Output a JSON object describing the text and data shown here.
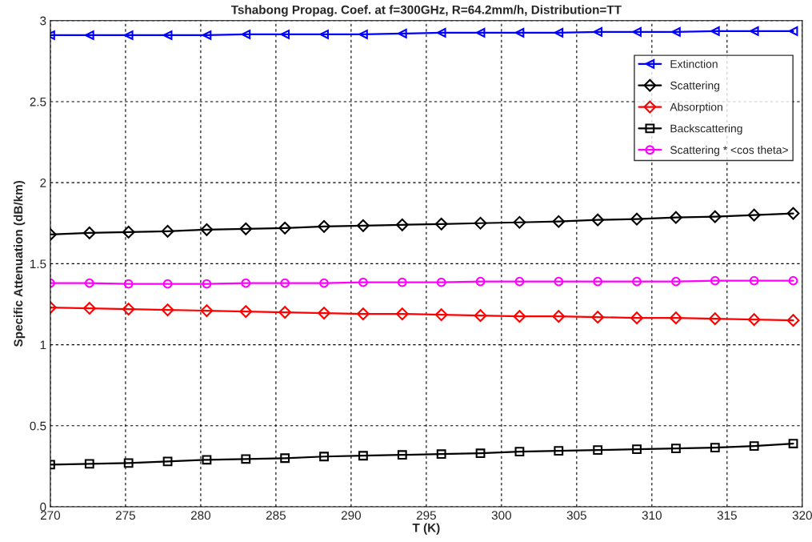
{
  "chart_data": {
    "type": "line",
    "title": "Tshabong Propag. Coef. at f=300GHz, R=64.2mm/h, Distribution=TT",
    "xlabel": "T (K)",
    "ylabel": "Specific Attenuation (dB/km)",
    "x": [
      270,
      272.6,
      275.2,
      277.8,
      280.4,
      283,
      285.6,
      288.2,
      290.8,
      293.4,
      296,
      298.6,
      301.2,
      303.8,
      306.4,
      309,
      311.6,
      314.2,
      316.8,
      319.4
    ],
    "series": [
      {
        "name": "Extinction",
        "color": "#0000ff",
        "marker": "triangle",
        "values": [
          2.91,
          2.91,
          2.91,
          2.91,
          2.91,
          2.915,
          2.915,
          2.915,
          2.915,
          2.92,
          2.925,
          2.925,
          2.925,
          2.925,
          2.93,
          2.93,
          2.93,
          2.935,
          2.935,
          2.935
        ]
      },
      {
        "name": "Scattering",
        "color": "#000000",
        "marker": "diamond",
        "values": [
          1.68,
          1.69,
          1.695,
          1.7,
          1.71,
          1.715,
          1.72,
          1.73,
          1.735,
          1.74,
          1.745,
          1.75,
          1.755,
          1.76,
          1.77,
          1.775,
          1.785,
          1.79,
          1.8,
          1.81
        ]
      },
      {
        "name": "Absorption",
        "color": "#ff0000",
        "marker": "diamond",
        "values": [
          1.23,
          1.225,
          1.22,
          1.215,
          1.21,
          1.205,
          1.2,
          1.195,
          1.19,
          1.19,
          1.185,
          1.18,
          1.175,
          1.175,
          1.17,
          1.165,
          1.165,
          1.16,
          1.155,
          1.15
        ]
      },
      {
        "name": "Backscattering",
        "color": "#000000",
        "marker": "square",
        "values": [
          0.26,
          0.265,
          0.27,
          0.28,
          0.29,
          0.295,
          0.3,
          0.31,
          0.315,
          0.32,
          0.325,
          0.33,
          0.34,
          0.345,
          0.35,
          0.355,
          0.36,
          0.365,
          0.375,
          0.39
        ]
      },
      {
        "name": "Scattering * <cos theta>",
        "color": "#ff00ff",
        "marker": "circle",
        "values": [
          1.38,
          1.38,
          1.375,
          1.375,
          1.375,
          1.38,
          1.38,
          1.38,
          1.385,
          1.385,
          1.385,
          1.39,
          1.39,
          1.39,
          1.39,
          1.39,
          1.39,
          1.395,
          1.395,
          1.395
        ]
      }
    ],
    "xlim": [
      270,
      320
    ],
    "xticks": [
      270,
      275,
      280,
      285,
      290,
      295,
      300,
      305,
      310,
      315,
      320
    ],
    "ylim": [
      0,
      3
    ],
    "yticks": [
      0,
      0.5,
      1,
      1.5,
      2,
      2.5,
      3
    ],
    "grid": true,
    "legend": "top right",
    "line_style": "solid"
  }
}
